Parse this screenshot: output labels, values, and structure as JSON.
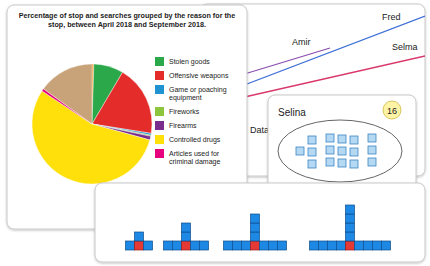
{
  "chart_data": {
    "type": "pie",
    "title": "Percentage of stop and searches grouped by the reason for the stop, between April 2018 and September 2018.",
    "categories": [
      null,
      "Stolen goods",
      "Offensive weapons",
      "Game or poaching equipment",
      "Fireworks",
      "Firearms",
      "Controlled drugs",
      "Articles used for criminal damage",
      null
    ],
    "values": [
      0.5,
      8,
      19,
      0.5,
      0.3,
      1,
      55,
      0.7,
      15
    ],
    "colors": [
      "#f7941d",
      "#2aa84a",
      "#e42d2a",
      "#1f93d2",
      "#8cc63f",
      "#7b2d8e",
      "#ffe00a",
      "#e6007e",
      "#c8a278"
    ],
    "legend": "right"
  },
  "line_card": {
    "axis_label": "Data",
    "series": [
      {
        "name": "Amir",
        "color": "#8a4fb0"
      },
      {
        "name": "Fred",
        "color": "#3d6fd6"
      },
      {
        "name": "Selma",
        "color": "#d9386b"
      }
    ]
  },
  "set_card": {
    "name": "Selina",
    "count": 16
  },
  "pattern_card": {
    "patterns": [
      1,
      2,
      3,
      4
    ]
  }
}
